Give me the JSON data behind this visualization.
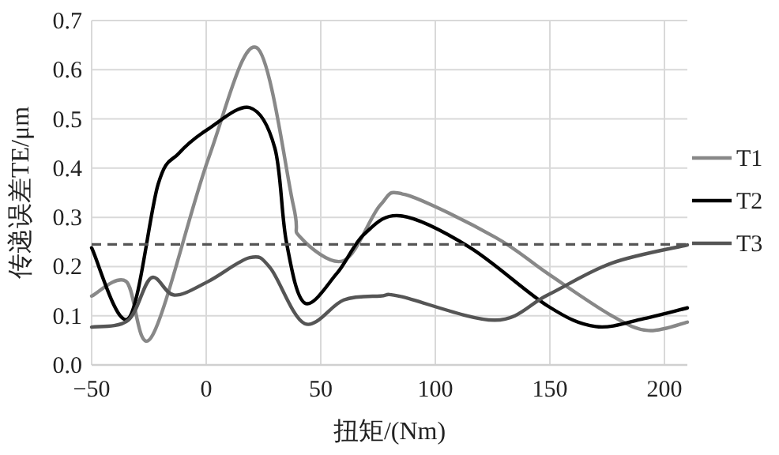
{
  "chart_data": {
    "type": "line",
    "xlabel": "扭矩/(Nm)",
    "ylabel": "传递误差TE/μm",
    "xlim": [
      -50,
      210
    ],
    "ylim": [
      0,
      0.7
    ],
    "xticks": [
      -50,
      0,
      50,
      100,
      150,
      200
    ],
    "yticks": [
      {
        "value": 0,
        "label": "0.0"
      },
      {
        "value": 0.1,
        "label": "0.1"
      },
      {
        "value": 0.2,
        "label": "0.2"
      },
      {
        "value": 0.3,
        "label": "0.3"
      },
      {
        "value": 0.4,
        "label": "0.4"
      },
      {
        "value": 0.5,
        "label": "0.5"
      },
      {
        "value": 0.6,
        "label": "0.6"
      },
      {
        "value": 0.7,
        "label": "0.7"
      }
    ],
    "grid": true,
    "legend": "right",
    "series": [
      {
        "name": "T1",
        "color": "#888888",
        "x": [
          -50,
          -35,
          -24,
          1,
          22,
          38,
          41,
          60,
          76,
          87,
          126,
          149,
          177,
          193,
          210
        ],
        "values": [
          0.14,
          0.17,
          0.056,
          0.42,
          0.645,
          0.325,
          0.26,
          0.212,
          0.325,
          0.346,
          0.26,
          0.186,
          0.1,
          0.07,
          0.087
        ]
      },
      {
        "name": "T2",
        "color": "#000000",
        "x": [
          -50,
          -34,
          -21,
          -12,
          1,
          19,
          30,
          35,
          43,
          57,
          69,
          85,
          115,
          149,
          170,
          191,
          210
        ],
        "values": [
          0.238,
          0.094,
          0.367,
          0.43,
          0.48,
          0.523,
          0.44,
          0.25,
          0.126,
          0.186,
          0.266,
          0.303,
          0.239,
          0.12,
          0.078,
          0.094,
          0.116
        ]
      },
      {
        "name": "T3",
        "color": "#555555",
        "x": [
          -50,
          -34,
          -24,
          -14,
          1,
          19,
          28,
          43,
          60,
          76,
          85,
          126,
          149,
          177,
          210
        ],
        "values": [
          0.077,
          0.091,
          0.177,
          0.142,
          0.17,
          0.218,
          0.197,
          0.084,
          0.132,
          0.14,
          0.139,
          0.091,
          0.142,
          0.207,
          0.244
        ]
      }
    ],
    "ref_lines": [
      {
        "axis": "y",
        "value": 0.245,
        "color": "#555555",
        "line_style": "dashed"
      }
    ]
  }
}
